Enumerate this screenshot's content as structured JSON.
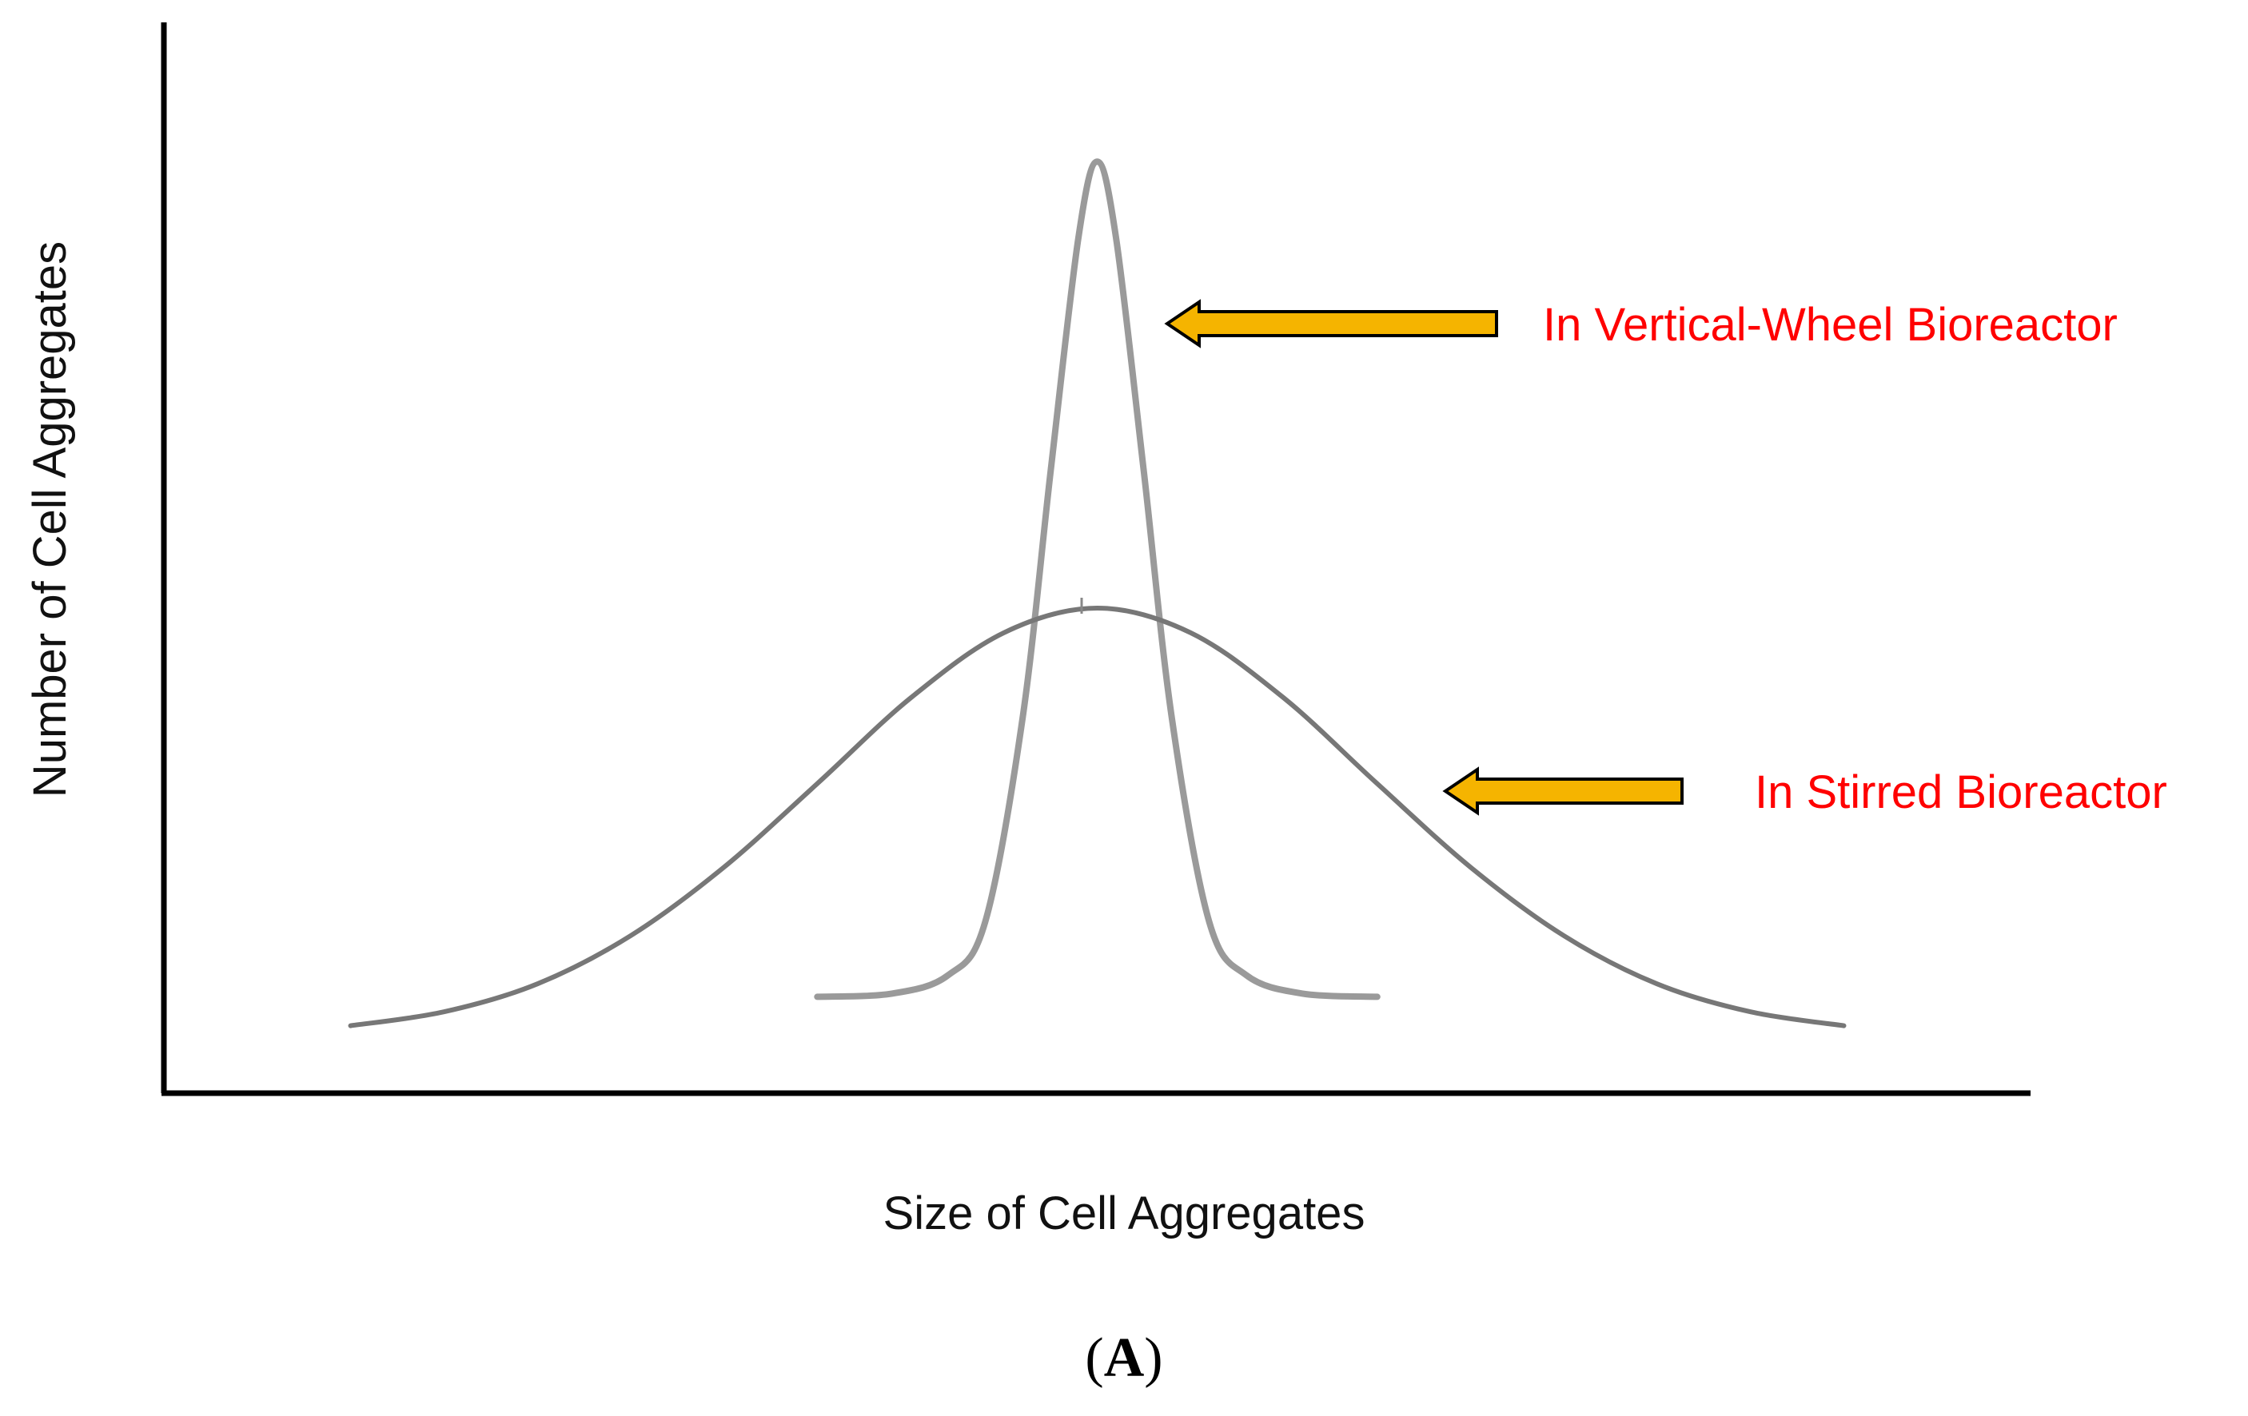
{
  "chart_data": {
    "type": "line",
    "title": "",
    "xlabel": "Size of Cell Aggregates",
    "ylabel": "Number of Cell Aggregates",
    "panel_label": "(A)",
    "xlim": [
      0,
      100
    ],
    "ylim": [
      0,
      100
    ],
    "grid": false,
    "series": [
      {
        "name": "In Vertical-Wheel Bioreactor",
        "shape": "narrow gaussian",
        "color": "#9a9a9a",
        "x": [
          35,
          39,
          42,
          44,
          46,
          47.5,
          49,
          50,
          51,
          52.5,
          54,
          56,
          58,
          61,
          65
        ],
        "y": [
          9,
          9.3,
          11,
          16,
          35,
          58,
          80,
          87,
          80,
          58,
          35,
          16,
          11,
          9.3,
          9
        ]
      },
      {
        "name": "In Stirred Bioreactor",
        "shape": "wide gaussian",
        "color": "#777777",
        "x": [
          10,
          15,
          20,
          25,
          30,
          35,
          40,
          45,
          50,
          55,
          60,
          65,
          70,
          75,
          80,
          85,
          90
        ],
        "y": [
          6.3,
          7.6,
          10.2,
          14.7,
          21.1,
          28.9,
          36.9,
          43.0,
          45.3,
          43.0,
          36.9,
          28.9,
          21.1,
          14.7,
          10.2,
          7.6,
          6.3
        ]
      }
    ],
    "annotations": [
      {
        "text": "In Vertical-Wheel Bioreactor",
        "color": "#ff0000",
        "points_to": "In Vertical-Wheel Bioreactor"
      },
      {
        "text": "In Stirred Bioreactor",
        "color": "#ff0000",
        "points_to": "In Stirred Bioreactor"
      }
    ],
    "arrow_color": "#f5b400"
  }
}
